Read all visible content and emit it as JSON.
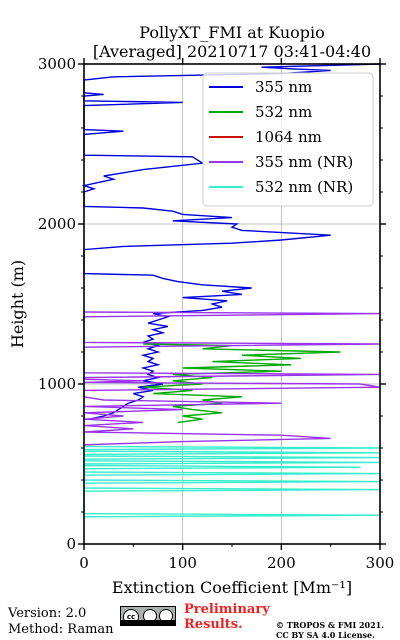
{
  "chart_data": {
    "type": "line",
    "title": "PollyXT_FMI at Kuopio",
    "subtitle": "[Averaged] 20210717 03:41-04:40",
    "xlabel": "Extinction Coefficient [Mm⁻¹]",
    "ylabel": "Height (m)",
    "xlim": [
      0,
      300
    ],
    "ylim": [
      0,
      3000
    ],
    "xticks": [
      "0",
      "100",
      "200",
      "300"
    ],
    "yticks": [
      "0",
      "1000",
      "2000",
      "3000"
    ],
    "grid": true,
    "legend_position": "top-right",
    "series": [
      {
        "name": "355 nm",
        "color": "#0000dd",
        "points": [
          [
            5,
            780
          ],
          [
            20,
            800
          ],
          [
            30,
            820
          ],
          [
            35,
            840
          ],
          [
            40,
            860
          ],
          [
            45,
            880
          ],
          [
            55,
            900
          ],
          [
            60,
            920
          ],
          [
            50,
            940
          ],
          [
            70,
            960
          ],
          [
            55,
            980
          ],
          [
            80,
            1000
          ],
          [
            60,
            1020
          ],
          [
            75,
            1040
          ],
          [
            65,
            1060
          ],
          [
            70,
            1080
          ],
          [
            60,
            1100
          ],
          [
            75,
            1120
          ],
          [
            65,
            1140
          ],
          [
            70,
            1160
          ],
          [
            60,
            1180
          ],
          [
            75,
            1200
          ],
          [
            65,
            1220
          ],
          [
            75,
            1240
          ],
          [
            60,
            1260
          ],
          [
            70,
            1280
          ],
          [
            65,
            1300
          ],
          [
            80,
            1320
          ],
          [
            70,
            1340
          ],
          [
            85,
            1360
          ],
          [
            65,
            1380
          ],
          [
            75,
            1400
          ],
          [
            85,
            1420
          ],
          [
            70,
            1440
          ],
          [
            120,
            1460
          ],
          [
            140,
            1480
          ],
          [
            130,
            1500
          ],
          [
            145,
            1520
          ],
          [
            100,
            1540
          ],
          [
            160,
            1560
          ],
          [
            140,
            1580
          ],
          [
            170,
            1600
          ],
          [
            120,
            1620
          ],
          [
            95,
            1640
          ],
          [
            80,
            1660
          ],
          [
            70,
            1680
          ],
          [
            0,
            1690
          ],
          [
            0,
            1840
          ],
          [
            40,
            1860
          ],
          [
            150,
            1880
          ],
          [
            200,
            1900
          ],
          [
            250,
            1930
          ],
          [
            160,
            1960
          ],
          [
            150,
            1980
          ],
          [
            155,
            2000
          ],
          [
            90,
            2020
          ],
          [
            150,
            2040
          ],
          [
            100,
            2060
          ],
          [
            90,
            2080
          ],
          [
            60,
            2100
          ],
          [
            0,
            2110
          ],
          [
            0,
            2200
          ],
          [
            10,
            2220
          ],
          [
            0,
            2240
          ],
          [
            30,
            2280
          ],
          [
            20,
            2300
          ],
          [
            60,
            2340
          ],
          [
            120,
            2380
          ],
          [
            110,
            2420
          ],
          [
            0,
            2430
          ],
          [
            0,
            2560
          ],
          [
            40,
            2580
          ],
          [
            0,
            2590
          ],
          [
            0,
            2740
          ],
          [
            100,
            2760
          ],
          [
            0,
            2770
          ],
          [
            0,
            2800
          ],
          [
            20,
            2810
          ],
          [
            0,
            2820
          ],
          [
            0,
            2900
          ],
          [
            30,
            2920
          ],
          [
            200,
            2940
          ],
          [
            250,
            2960
          ],
          [
            210,
            2970
          ],
          [
            180,
            2980
          ],
          [
            300,
            3000
          ]
        ]
      },
      {
        "name": "532 nm",
        "color": "#00aa00",
        "points": [
          [
            95,
            760
          ],
          [
            120,
            780
          ],
          [
            100,
            800
          ],
          [
            140,
            820
          ],
          [
            110,
            840
          ],
          [
            90,
            860
          ],
          [
            140,
            880
          ],
          [
            120,
            900
          ],
          [
            160,
            920
          ],
          [
            70,
            940
          ],
          [
            110,
            960
          ],
          [
            60,
            980
          ],
          [
            120,
            1000
          ],
          [
            90,
            1020
          ],
          [
            130,
            1040
          ],
          [
            90,
            1060
          ],
          [
            200,
            1080
          ],
          [
            100,
            1100
          ],
          [
            210,
            1120
          ],
          [
            130,
            1140
          ],
          [
            220,
            1160
          ],
          [
            160,
            1180
          ],
          [
            260,
            1200
          ],
          [
            120,
            1220
          ],
          [
            150,
            1240
          ],
          [
            60,
            1250
          ]
        ]
      },
      {
        "name": "1064 nm",
        "color": "#cc1111",
        "points": []
      },
      {
        "name": "355 nm (NR)",
        "color": "#9933ee",
        "points": [
          [
            0,
            620
          ],
          [
            100,
            640
          ],
          [
            250,
            660
          ],
          [
            200,
            680
          ],
          [
            0,
            700
          ],
          [
            50,
            720
          ],
          [
            0,
            740
          ],
          [
            60,
            760
          ],
          [
            0,
            780
          ],
          [
            40,
            800
          ],
          [
            0,
            820
          ],
          [
            100,
            840
          ],
          [
            0,
            860
          ],
          [
            200,
            880
          ],
          [
            20,
            900
          ],
          [
            0,
            920
          ],
          [
            0,
            960
          ],
          [
            300,
            980
          ],
          [
            280,
            1000
          ],
          [
            0,
            1010
          ],
          [
            60,
            1020
          ],
          [
            0,
            1030
          ],
          [
            0,
            1040
          ],
          [
            300,
            1060
          ],
          [
            0,
            1070
          ],
          [
            0,
            1230
          ],
          [
            300,
            1250
          ],
          [
            0,
            1260
          ],
          [
            0,
            1420
          ],
          [
            300,
            1440
          ],
          [
            0,
            1450
          ]
        ]
      },
      {
        "name": "532 nm (NR)",
        "color": "#33eecc",
        "points": [
          [
            0,
            170
          ],
          [
            300,
            180
          ],
          [
            0,
            190
          ],
          [
            0,
            330
          ],
          [
            300,
            340
          ],
          [
            0,
            350
          ],
          [
            0,
            380
          ],
          [
            300,
            390
          ],
          [
            0,
            400
          ],
          [
            0,
            430
          ],
          [
            300,
            440
          ],
          [
            0,
            450
          ],
          [
            0,
            470
          ],
          [
            280,
            480
          ],
          [
            0,
            490
          ],
          [
            0,
            500
          ],
          [
            300,
            510
          ],
          [
            0,
            520
          ],
          [
            0,
            530
          ],
          [
            300,
            540
          ],
          [
            0,
            550
          ],
          [
            0,
            560
          ],
          [
            300,
            570
          ],
          [
            0,
            580
          ],
          [
            0,
            590
          ],
          [
            300,
            600
          ],
          [
            0,
            610
          ]
        ]
      }
    ]
  },
  "footer": {
    "version": "Version: 2.0",
    "method": "Method: Raman",
    "preliminary_line1": "Preliminary",
    "preliminary_line2": "Results.",
    "copyright_line1": "© TROPOS & FMI 2021.",
    "copyright_line2": "CC BY SA 4.0 License."
  }
}
